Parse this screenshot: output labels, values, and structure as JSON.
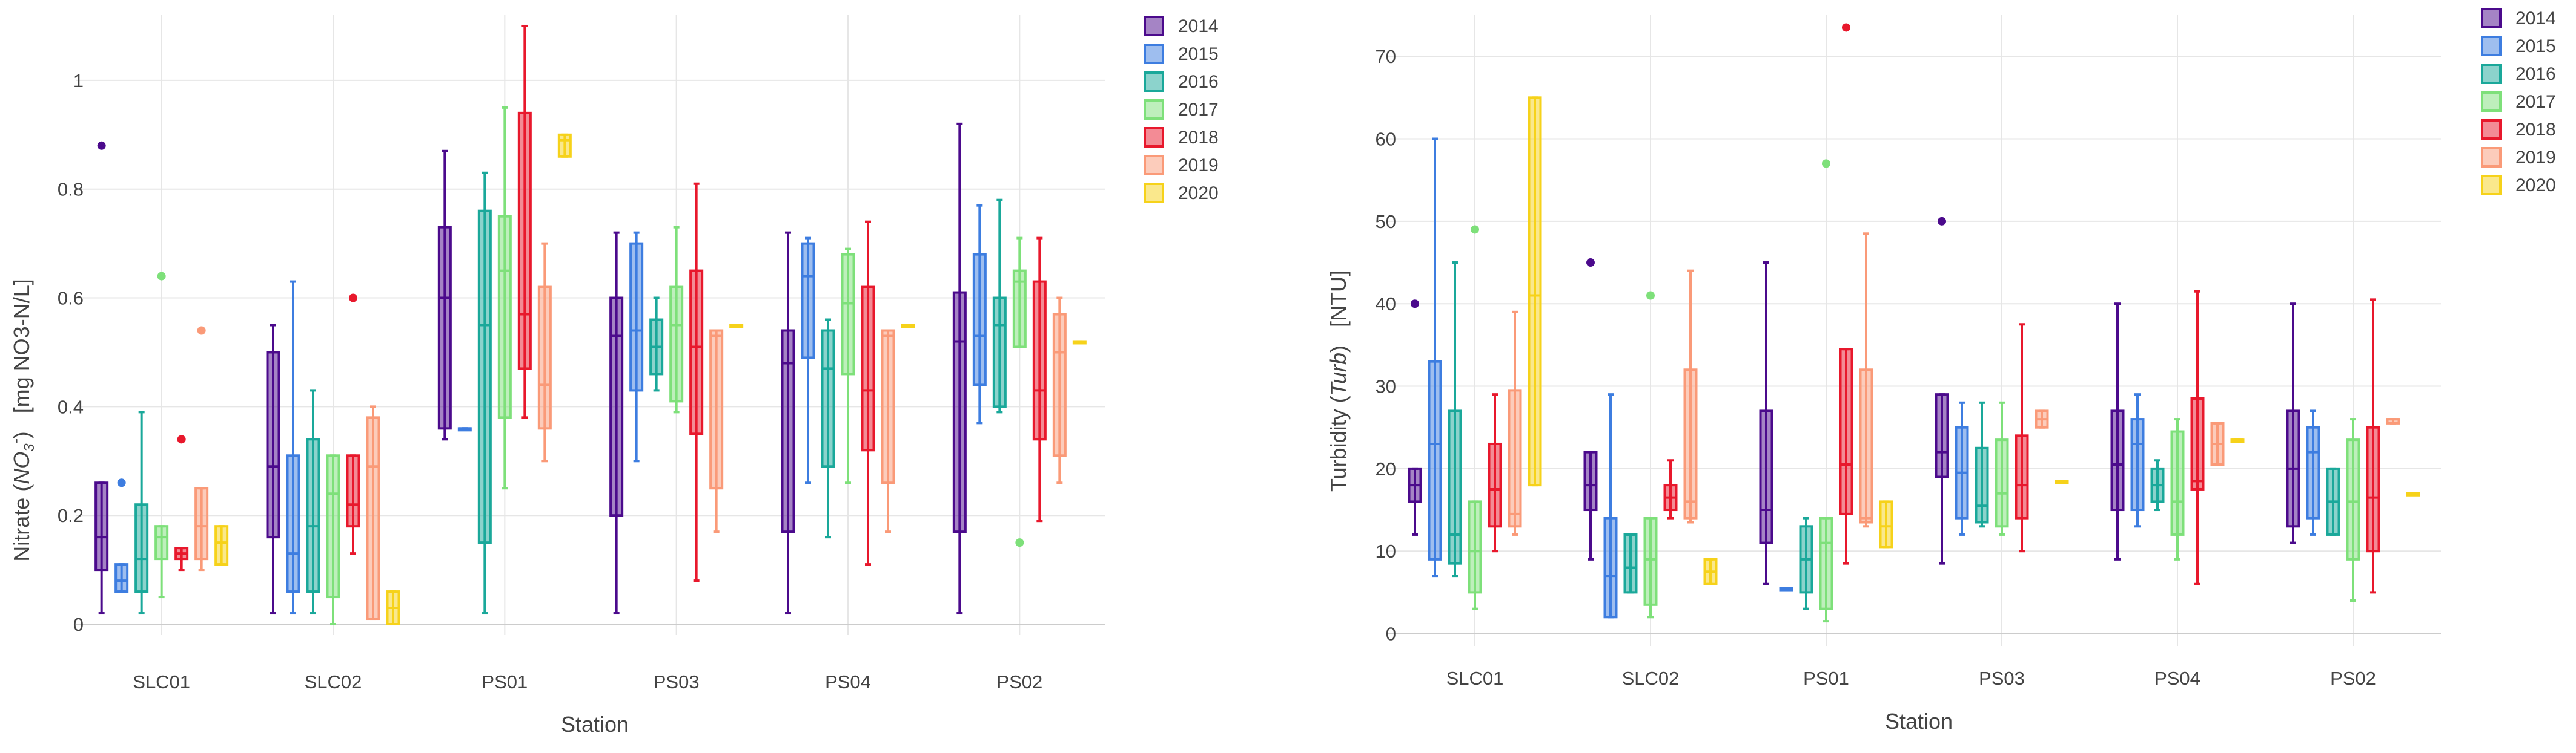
{
  "colors": {
    "2014": "#4b0a8c",
    "2015": "#3d7de0",
    "2016": "#1aa89a",
    "2017": "#7ee07a",
    "2018": "#e8182c",
    "2019": "#fa9a78",
    "2020": "#f6d21a",
    "grid": "#e6e6e6",
    "axis": "#cccccc"
  },
  "chart_data": [
    {
      "type": "box",
      "title": "",
      "xlabel": "Station",
      "ylabel": "Nitrate (NO3-) [mg NO3-N/L]",
      "ylabel_main": "Nitrate (",
      "ylabel_italic": "NO",
      "ylabel_sub": "3",
      "ylabel_sup": "-",
      "ylabel_close": ")",
      "ylabel_units": "[mg NO3-N/L]",
      "ylim": [
        -0.02,
        1.12
      ],
      "yticks": [
        0,
        0.2,
        0.4,
        0.6,
        0.8,
        1
      ],
      "ytick_labels": [
        "0",
        "0.2",
        "0.4",
        "0.6",
        "0.8",
        "1"
      ],
      "grid": true,
      "legend_position": "top-right",
      "legend": [
        "2014",
        "2015",
        "2016",
        "2017",
        "2018",
        "2019",
        "2020"
      ],
      "categories": [
        "SLC01",
        "SLC02",
        "PS01",
        "PS03",
        "PS04",
        "PS02"
      ],
      "series": [
        {
          "name": "2014",
          "boxes": [
            {
              "min": 0.02,
              "q1": 0.1,
              "median": 0.16,
              "q3": 0.26,
              "max": 0.26,
              "outliers": [
                0.88
              ]
            },
            {
              "min": 0.02,
              "q1": 0.16,
              "median": 0.29,
              "q3": 0.5,
              "max": 0.55,
              "outliers": []
            },
            {
              "min": 0.34,
              "q1": 0.36,
              "median": 0.6,
              "q3": 0.73,
              "max": 0.87,
              "outliers": []
            },
            {
              "min": 0.02,
              "q1": 0.2,
              "median": 0.53,
              "q3": 0.6,
              "max": 0.72,
              "outliers": []
            },
            {
              "min": 0.02,
              "q1": 0.17,
              "median": 0.48,
              "q3": 0.54,
              "max": 0.72,
              "outliers": []
            },
            {
              "min": 0.02,
              "q1": 0.17,
              "median": 0.52,
              "q3": 0.61,
              "max": 0.92,
              "outliers": []
            }
          ]
        },
        {
          "name": "2015",
          "boxes": [
            {
              "min": 0.06,
              "q1": 0.06,
              "median": 0.08,
              "q3": 0.11,
              "max": 0.11,
              "outliers": [
                0.26
              ]
            },
            {
              "min": 0.02,
              "q1": 0.06,
              "median": 0.13,
              "q3": 0.31,
              "max": 0.63,
              "outliers": []
            },
            {
              "min": 0.36,
              "q1": 0.36,
              "median": 0.36,
              "q3": 0.36,
              "max": 0.36,
              "outliers": []
            },
            {
              "min": 0.3,
              "q1": 0.43,
              "median": 0.54,
              "q3": 0.7,
              "max": 0.72,
              "outliers": []
            },
            {
              "min": 0.26,
              "q1": 0.49,
              "median": 0.64,
              "q3": 0.7,
              "max": 0.71,
              "outliers": []
            },
            {
              "min": 0.37,
              "q1": 0.44,
              "median": 0.53,
              "q3": 0.68,
              "max": 0.77,
              "outliers": []
            }
          ]
        },
        {
          "name": "2016",
          "boxes": [
            {
              "min": 0.02,
              "q1": 0.06,
              "median": 0.12,
              "q3": 0.22,
              "max": 0.39,
              "outliers": []
            },
            {
              "min": 0.02,
              "q1": 0.06,
              "median": 0.18,
              "q3": 0.34,
              "max": 0.43,
              "outliers": []
            },
            {
              "min": 0.02,
              "q1": 0.15,
              "median": 0.55,
              "q3": 0.76,
              "max": 0.83,
              "outliers": []
            },
            {
              "min": 0.43,
              "q1": 0.46,
              "median": 0.51,
              "q3": 0.56,
              "max": 0.6,
              "outliers": []
            },
            {
              "min": 0.16,
              "q1": 0.29,
              "median": 0.47,
              "q3": 0.54,
              "max": 0.56,
              "outliers": []
            },
            {
              "min": 0.39,
              "q1": 0.4,
              "median": 0.55,
              "q3": 0.6,
              "max": 0.78,
              "outliers": []
            }
          ]
        },
        {
          "name": "2017",
          "boxes": [
            {
              "min": 0.05,
              "q1": 0.12,
              "median": 0.16,
              "q3": 0.18,
              "max": 0.18,
              "outliers": [
                0.64
              ]
            },
            {
              "min": 0.0,
              "q1": 0.05,
              "median": 0.24,
              "q3": 0.31,
              "max": 0.31,
              "outliers": []
            },
            {
              "min": 0.25,
              "q1": 0.38,
              "median": 0.65,
              "q3": 0.75,
              "max": 0.95,
              "outliers": []
            },
            {
              "min": 0.39,
              "q1": 0.41,
              "median": 0.55,
              "q3": 0.62,
              "max": 0.73,
              "outliers": []
            },
            {
              "min": 0.26,
              "q1": 0.46,
              "median": 0.59,
              "q3": 0.68,
              "max": 0.69,
              "outliers": []
            },
            {
              "min": 0.51,
              "q1": 0.51,
              "median": 0.63,
              "q3": 0.65,
              "max": 0.71,
              "outliers": [
                0.15
              ]
            }
          ]
        },
        {
          "name": "2018",
          "boxes": [
            {
              "min": 0.1,
              "q1": 0.12,
              "median": 0.13,
              "q3": 0.14,
              "max": 0.14,
              "outliers": [
                0.34
              ]
            },
            {
              "min": 0.13,
              "q1": 0.18,
              "median": 0.22,
              "q3": 0.31,
              "max": 0.31,
              "outliers": [
                0.6
              ]
            },
            {
              "min": 0.38,
              "q1": 0.47,
              "median": 0.57,
              "q3": 0.94,
              "max": 1.1,
              "outliers": []
            },
            {
              "min": 0.08,
              "q1": 0.35,
              "median": 0.51,
              "q3": 0.65,
              "max": 0.81,
              "outliers": []
            },
            {
              "min": 0.11,
              "q1": 0.32,
              "median": 0.43,
              "q3": 0.62,
              "max": 0.74,
              "outliers": []
            },
            {
              "min": 0.19,
              "q1": 0.34,
              "median": 0.43,
              "q3": 0.63,
              "max": 0.71,
              "outliers": []
            }
          ]
        },
        {
          "name": "2019",
          "boxes": [
            {
              "min": 0.1,
              "q1": 0.12,
              "median": 0.18,
              "q3": 0.25,
              "max": 0.25,
              "outliers": [
                0.54
              ]
            },
            {
              "min": 0.01,
              "q1": 0.01,
              "median": 0.29,
              "q3": 0.38,
              "max": 0.4,
              "outliers": []
            },
            {
              "min": 0.3,
              "q1": 0.36,
              "median": 0.44,
              "q3": 0.62,
              "max": 0.7,
              "outliers": []
            },
            {
              "min": 0.17,
              "q1": 0.25,
              "median": 0.53,
              "q3": 0.54,
              "max": 0.54,
              "outliers": []
            },
            {
              "min": 0.17,
              "q1": 0.26,
              "median": 0.53,
              "q3": 0.54,
              "max": 0.54,
              "outliers": []
            },
            {
              "min": 0.26,
              "q1": 0.31,
              "median": 0.5,
              "q3": 0.57,
              "max": 0.6,
              "outliers": []
            }
          ]
        },
        {
          "name": "2020",
          "boxes": [
            {
              "min": 0.11,
              "q1": 0.11,
              "median": 0.15,
              "q3": 0.18,
              "max": 0.18,
              "outliers": []
            },
            {
              "min": 0.0,
              "q1": 0.0,
              "median": 0.03,
              "q3": 0.06,
              "max": 0.06,
              "outliers": []
            },
            {
              "min": 0.86,
              "q1": 0.86,
              "median": 0.89,
              "q3": 0.9,
              "max": 0.9,
              "outliers": []
            },
            {
              "min": 0.55,
              "q1": 0.55,
              "median": 0.55,
              "q3": 0.55,
              "max": 0.55,
              "outliers": []
            },
            {
              "min": 0.55,
              "q1": 0.55,
              "median": 0.55,
              "q3": 0.55,
              "max": 0.55,
              "outliers": []
            },
            {
              "min": 0.52,
              "q1": 0.52,
              "median": 0.52,
              "q3": 0.52,
              "max": 0.52,
              "outliers": []
            }
          ]
        }
      ]
    },
    {
      "type": "box",
      "title": "",
      "xlabel": "Station",
      "ylabel": "Turbidity (Turb) [NTU]",
      "ylabel_main": "Turbidity (",
      "ylabel_italic": "Turb",
      "ylabel_close": ")",
      "ylabel_units": "[NTU]",
      "ylim": [
        -1.5,
        75
      ],
      "yticks": [
        0,
        10,
        20,
        30,
        40,
        50,
        60,
        70
      ],
      "ytick_labels": [
        "0",
        "10",
        "20",
        "30",
        "40",
        "50",
        "60",
        "70"
      ],
      "grid": true,
      "legend_position": "top-right",
      "legend": [
        "2014",
        "2015",
        "2016",
        "2017",
        "2018",
        "2019",
        "2020"
      ],
      "categories": [
        "SLC01",
        "SLC02",
        "PS01",
        "PS03",
        "PS04",
        "PS02"
      ],
      "series": [
        {
          "name": "2014",
          "boxes": [
            {
              "min": 12,
              "q1": 16,
              "median": 18,
              "q3": 20,
              "max": 20,
              "outliers": [
                40
              ]
            },
            {
              "min": 9,
              "q1": 15,
              "median": 18,
              "q3": 22,
              "max": 22,
              "outliers": [
                45
              ]
            },
            {
              "min": 6,
              "q1": 11,
              "median": 15,
              "q3": 27,
              "max": 45,
              "outliers": []
            },
            {
              "min": 8.5,
              "q1": 19,
              "median": 22,
              "q3": 29,
              "max": 29,
              "outliers": [
                50
              ]
            },
            {
              "min": 9,
              "q1": 15,
              "median": 20.5,
              "q3": 27,
              "max": 40,
              "outliers": []
            },
            {
              "min": 11,
              "q1": 13,
              "median": 20,
              "q3": 27,
              "max": 40,
              "outliers": []
            }
          ]
        },
        {
          "name": "2015",
          "boxes": [
            {
              "min": 7,
              "q1": 9,
              "median": 23,
              "q3": 33,
              "max": 60,
              "outliers": []
            },
            {
              "min": 2,
              "q1": 2,
              "median": 7,
              "q3": 14,
              "max": 29,
              "outliers": []
            },
            {
              "min": 5.5,
              "q1": 5.5,
              "median": 5.5,
              "q3": 5.5,
              "max": 5.5,
              "outliers": []
            },
            {
              "min": 12,
              "q1": 14,
              "median": 19.5,
              "q3": 25,
              "max": 28,
              "outliers": []
            },
            {
              "min": 13,
              "q1": 15,
              "median": 23,
              "q3": 26,
              "max": 29,
              "outliers": []
            },
            {
              "min": 12,
              "q1": 14,
              "median": 22,
              "q3": 25,
              "max": 27,
              "outliers": []
            }
          ]
        },
        {
          "name": "2016",
          "boxes": [
            {
              "min": 7,
              "q1": 8.5,
              "median": 12,
              "q3": 27,
              "max": 45,
              "outliers": []
            },
            {
              "min": 5,
              "q1": 5,
              "median": 8,
              "q3": 12,
              "max": 12,
              "outliers": []
            },
            {
              "min": 3,
              "q1": 5,
              "median": 9,
              "q3": 13,
              "max": 14,
              "outliers": []
            },
            {
              "min": 13,
              "q1": 13.5,
              "median": 15.5,
              "q3": 22.5,
              "max": 28,
              "outliers": []
            },
            {
              "min": 15,
              "q1": 16,
              "median": 18,
              "q3": 20,
              "max": 21,
              "outliers": []
            },
            {
              "min": 12,
              "q1": 12,
              "median": 16,
              "q3": 20,
              "max": 20,
              "outliers": []
            }
          ]
        },
        {
          "name": "2017",
          "boxes": [
            {
              "min": 3,
              "q1": 5,
              "median": 10,
              "q3": 16,
              "max": 16,
              "outliers": [
                49
              ]
            },
            {
              "min": 2,
              "q1": 3.5,
              "median": 9,
              "q3": 14,
              "max": 14,
              "outliers": [
                41
              ]
            },
            {
              "min": 1.5,
              "q1": 3,
              "median": 11,
              "q3": 14,
              "max": 14,
              "outliers": [
                57
              ]
            },
            {
              "min": 12,
              "q1": 13,
              "median": 17,
              "q3": 23.5,
              "max": 28,
              "outliers": []
            },
            {
              "min": 9,
              "q1": 12,
              "median": 16,
              "q3": 24.5,
              "max": 26,
              "outliers": []
            },
            {
              "min": 4,
              "q1": 9,
              "median": 16,
              "q3": 23.5,
              "max": 26,
              "outliers": []
            }
          ]
        },
        {
          "name": "2018",
          "boxes": [
            {
              "min": 10,
              "q1": 13,
              "median": 17.5,
              "q3": 23,
              "max": 29,
              "outliers": []
            },
            {
              "min": 14,
              "q1": 15,
              "median": 16.5,
              "q3": 18,
              "max": 21,
              "outliers": []
            },
            {
              "min": 8.5,
              "q1": 14.5,
              "median": 20.5,
              "q3": 34.5,
              "max": 34.5,
              "outliers": [
                73.5
              ]
            },
            {
              "min": 10,
              "q1": 14,
              "median": 18,
              "q3": 24,
              "max": 37.5,
              "outliers": []
            },
            {
              "min": 6,
              "q1": 17.5,
              "median": 18.5,
              "q3": 28.5,
              "max": 41.5,
              "outliers": []
            },
            {
              "min": 5,
              "q1": 10,
              "median": 16.5,
              "q3": 25,
              "max": 40.5,
              "outliers": []
            }
          ]
        },
        {
          "name": "2019",
          "boxes": [
            {
              "min": 12,
              "q1": 13,
              "median": 14.5,
              "q3": 29.5,
              "max": 39,
              "outliers": []
            },
            {
              "min": 13.5,
              "q1": 14,
              "median": 16,
              "q3": 32,
              "max": 44,
              "outliers": []
            },
            {
              "min": 13,
              "q1": 13.5,
              "median": 14,
              "q3": 32,
              "max": 48.5,
              "outliers": []
            },
            {
              "min": 25,
              "q1": 25,
              "median": 26,
              "q3": 27,
              "max": 27,
              "outliers": []
            },
            {
              "min": 20.5,
              "q1": 20.5,
              "median": 23,
              "q3": 25.5,
              "max": 25.5,
              "outliers": []
            },
            {
              "min": 25.5,
              "q1": 25.5,
              "median": 26,
              "q3": 26,
              "max": 26,
              "outliers": []
            }
          ]
        },
        {
          "name": "2020",
          "boxes": [
            {
              "min": 18,
              "q1": 18,
              "median": 41,
              "q3": 65,
              "max": 65,
              "outliers": []
            },
            {
              "min": 6,
              "q1": 6,
              "median": 7.5,
              "q3": 9,
              "max": 9,
              "outliers": []
            },
            {
              "min": 10.5,
              "q1": 10.5,
              "median": 13,
              "q3": 16,
              "max": 16,
              "outliers": []
            },
            {
              "min": 18.5,
              "q1": 18.5,
              "median": 18.5,
              "q3": 18.5,
              "max": 18.5,
              "outliers": []
            },
            {
              "min": 23.5,
              "q1": 23.5,
              "median": 23.5,
              "q3": 23.5,
              "max": 23.5,
              "outliers": []
            },
            {
              "min": 17,
              "q1": 17,
              "median": 17,
              "q3": 17,
              "max": 17,
              "outliers": []
            }
          ]
        }
      ]
    }
  ]
}
